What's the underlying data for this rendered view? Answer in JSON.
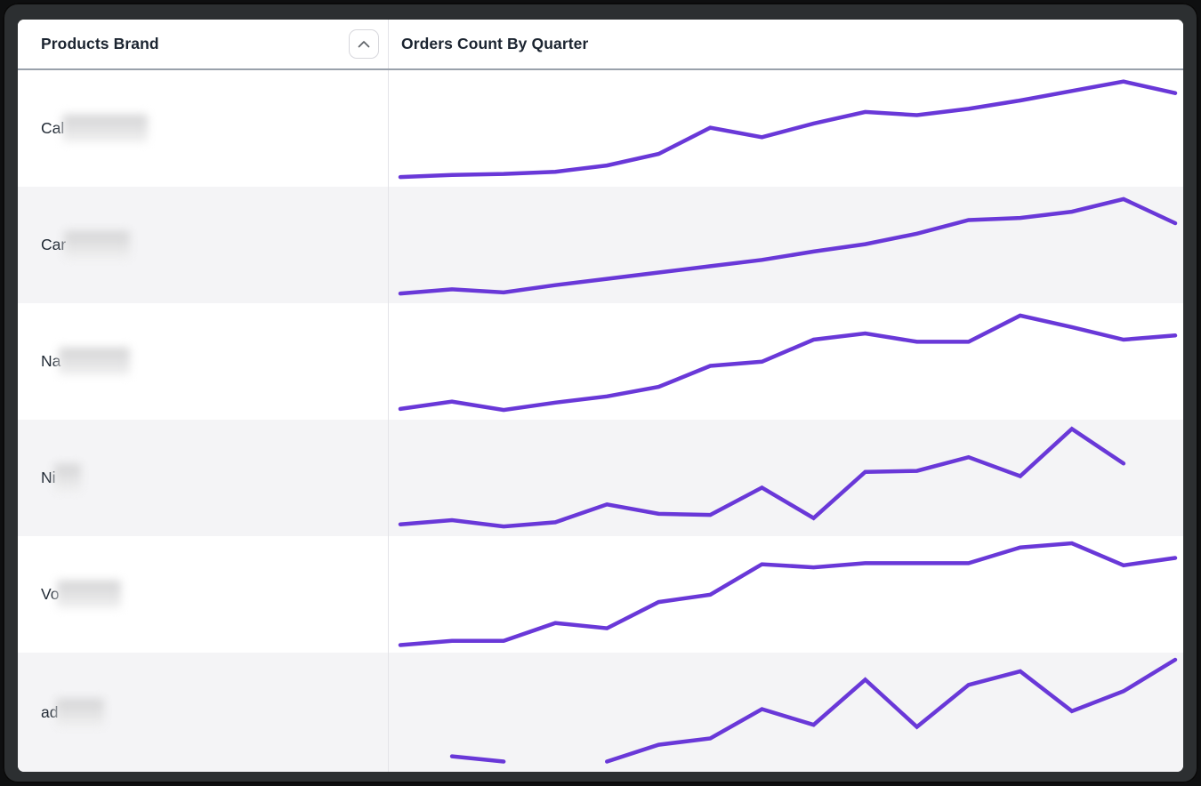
{
  "table": {
    "columns": [
      {
        "label": "Products Brand",
        "sortable": true,
        "sort_icon": "chevron-up"
      },
      {
        "label": "Orders Count By Quarter"
      }
    ],
    "rows": [
      {
        "brand_prefix": "Cal",
        "brand_redacted": true,
        "redacted_width": 96
      },
      {
        "brand_prefix": "Car",
        "brand_redacted": true,
        "redacted_width": 74
      },
      {
        "brand_prefix": "Na",
        "brand_redacted": true,
        "redacted_width": 80
      },
      {
        "brand_prefix": "Ni",
        "brand_redacted": true,
        "redacted_width": 30
      },
      {
        "brand_prefix": "Vo",
        "brand_redacted": true,
        "redacted_width": 72
      },
      {
        "brand_prefix": "ad",
        "brand_redacted": true,
        "redacted_width": 54
      }
    ]
  },
  "colors": {
    "sparkline": "#6938d8",
    "alt_row_bg": "#f4f4f6",
    "header_text": "#1b2430",
    "header_rule": "#99a1ab",
    "column_divider": "#e4e4e8"
  },
  "chart_data": {
    "type": "line",
    "title": "Orders Count By Quarter",
    "x_unit": "16 sequential quarters (unlabeled sparkline axis)",
    "value_scale": "relative 0-100 (no axis or value labels shown)",
    "grid": false,
    "legend_position": "none",
    "series": [
      {
        "name": "Cal (redacted)",
        "values": [
          5,
          7,
          8,
          10,
          16,
          27,
          52,
          43,
          56,
          67,
          64,
          70,
          78,
          87,
          96,
          85
        ]
      },
      {
        "name": "Car (redacted)",
        "values": [
          5,
          9,
          6,
          13,
          19,
          25,
          31,
          37,
          45,
          52,
          62,
          75,
          77,
          83,
          95,
          72
        ]
      },
      {
        "name": "Na (redacted)",
        "values": [
          6,
          13,
          5,
          12,
          18,
          27,
          47,
          51,
          72,
          78,
          70,
          70,
          95,
          84,
          72,
          76
        ]
      },
      {
        "name": "Ni (redacted)",
        "values": [
          7,
          11,
          5,
          9,
          26,
          17,
          16,
          42,
          13,
          57,
          58,
          71,
          53,
          98,
          65,
          null
        ]
      },
      {
        "name": "Vo (redacted)",
        "values": [
          3,
          7,
          7,
          24,
          19,
          44,
          51,
          80,
          77,
          81,
          81,
          81,
          96,
          100,
          79,
          86
        ]
      },
      {
        "name": "ad (redacted)",
        "values": [
          null,
          8,
          3,
          null,
          3,
          19,
          25,
          53,
          38,
          81,
          36,
          76,
          89,
          51,
          70,
          100
        ]
      }
    ]
  }
}
